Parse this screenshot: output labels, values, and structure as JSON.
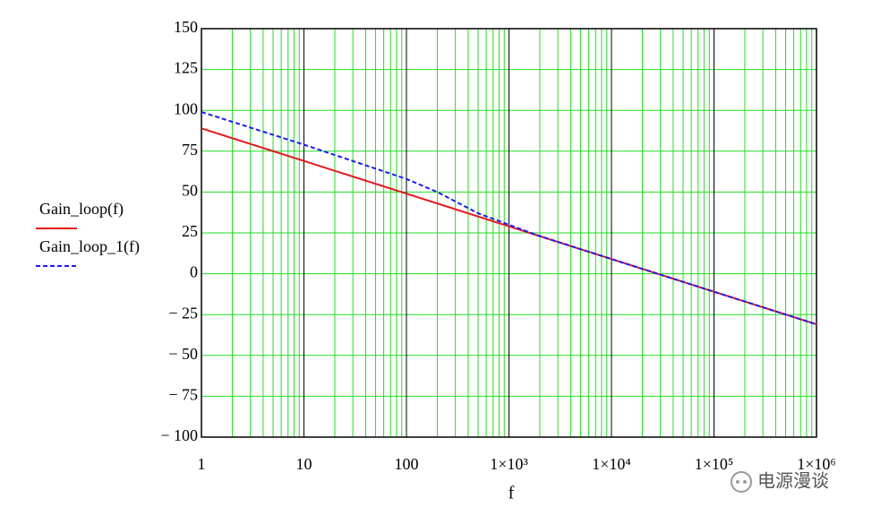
{
  "chart_data": {
    "type": "line",
    "x_label": "f",
    "log_x": true,
    "grid": true,
    "minor_grid": true,
    "xlim": [
      1,
      1000000
    ],
    "xticks": [
      1,
      10,
      100,
      {
        "value": 1000,
        "label": "1×10³"
      },
      {
        "value": 10000,
        "label": "1×10⁴"
      },
      {
        "value": 100000,
        "label": "1×10⁵"
      },
      {
        "value": 1000000,
        "label": "1×10⁶"
      }
    ],
    "ylim": [
      -100,
      150
    ],
    "yticks": [
      {
        "value": -100,
        "label": "− 100"
      },
      {
        "value": -75,
        "label": "− 75"
      },
      {
        "value": -50,
        "label": "− 50"
      },
      {
        "value": -25,
        "label": "− 25"
      },
      0,
      25,
      50,
      75,
      100,
      125,
      150
    ],
    "series": [
      {
        "name": "Gain_loop(f)",
        "color": "#e8161b",
        "dashed": false,
        "x": [
          1,
          10,
          100,
          1000,
          10000,
          100000,
          1000000
        ],
        "values": [
          89,
          69,
          49,
          29,
          9,
          -11,
          -31
        ]
      },
      {
        "name": "Gain_loop_1(f)",
        "color": "#1a1aff",
        "dashed": true,
        "x": [
          1,
          10,
          100,
          200,
          500,
          1000,
          2000,
          10000,
          100000,
          1000000
        ],
        "values": [
          99,
          79,
          58,
          50,
          37,
          30,
          23,
          9,
          -11,
          -31
        ]
      }
    ]
  },
  "watermark": "电源漫谈"
}
